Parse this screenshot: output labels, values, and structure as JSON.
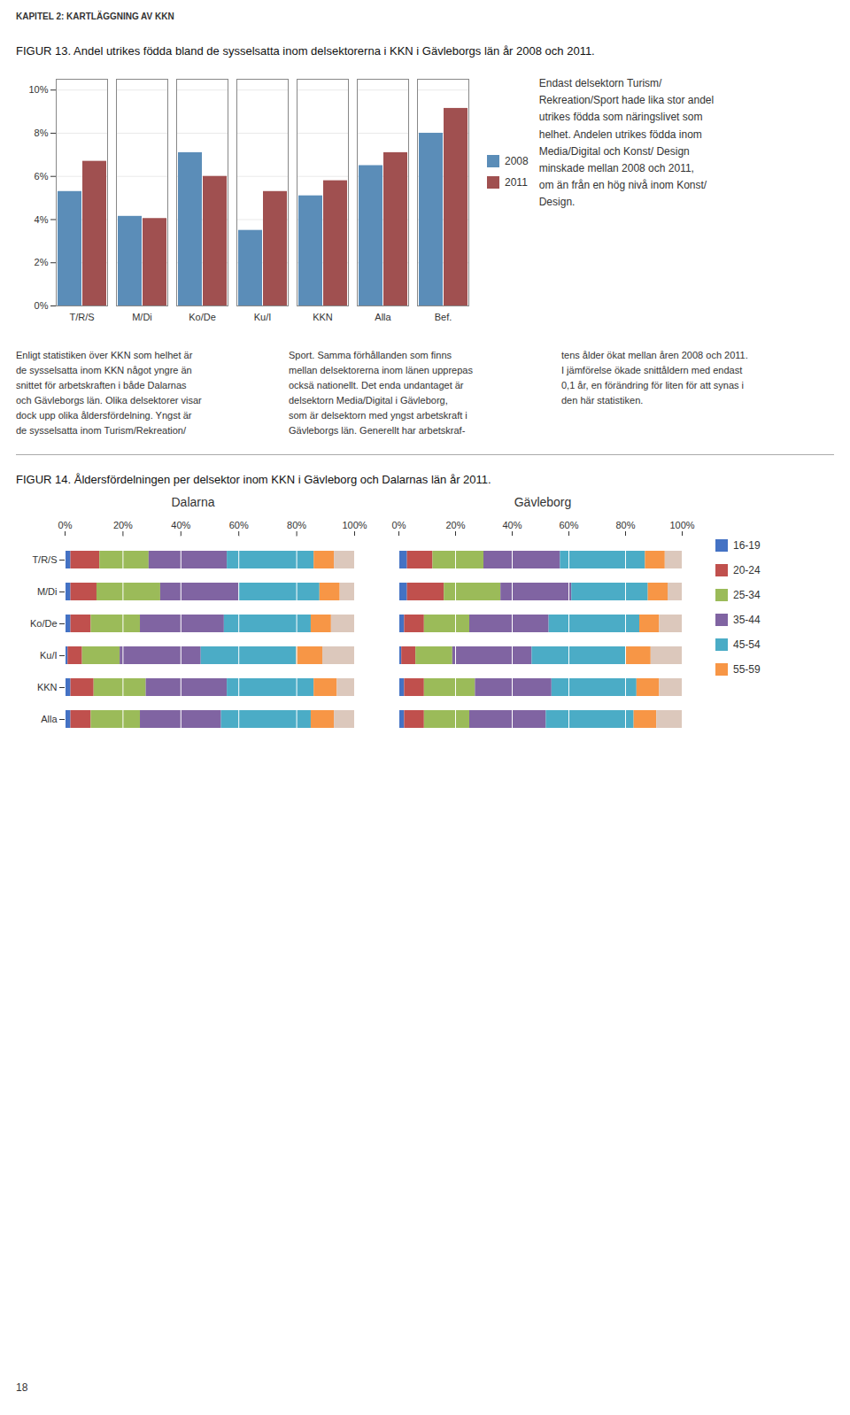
{
  "header": "KAPITEL 2: KARTLÄGGNING AV KKN",
  "chart_data": [
    {
      "type": "bar",
      "title": "FIGUR 13. Andel utrikes födda bland de sysselsatta inom delsektorerna i KKN i Gävleborgs län år 2008 och 2011.",
      "categories": [
        "T/R/S",
        "M/Di",
        "Ko/De",
        "Ku/I",
        "KKN",
        "Alla",
        "Bef."
      ],
      "series": [
        {
          "name": "2008",
          "color": "#5b8db8",
          "values": [
            5.3,
            4.15,
            7.1,
            3.5,
            5.1,
            6.5,
            8.0
          ]
        },
        {
          "name": "2011",
          "color": "#a05050",
          "values": [
            6.7,
            4.05,
            6.0,
            5.3,
            5.8,
            7.1,
            9.15
          ]
        }
      ],
      "ylim": [
        0,
        10.5
      ],
      "yticks": [
        {
          "value": 0,
          "label": "0%"
        },
        {
          "value": 2,
          "label": "2%"
        },
        {
          "value": 4,
          "label": "4%"
        },
        {
          "value": 6,
          "label": "6%"
        },
        {
          "value": 8,
          "label": "8%"
        },
        {
          "value": 10,
          "label": "10%"
        }
      ],
      "grid": true,
      "legend": "right",
      "annotations": [
        "Endast delsektorn Turism/\nRekreation/Sport hade lika stor andel\nutrikes födda som näringslivet som\nhelhet. Andelen utrikes födda inom\nMedia/Digital och Konst/ Design\nminskade mellan 2008 och 2011,\nom än från en hög nivå inom Konst/\nDesign."
      ]
    },
    {
      "type": "bar",
      "title": "Dalarna",
      "orientation": "horizontal",
      "stacked": true,
      "categories": [
        "T/R/S",
        "M/Di",
        "Ko/De",
        "Ku/I",
        "KKN",
        "Alla"
      ],
      "series": [
        {
          "name": "16-19",
          "color": "#4472c4",
          "values": [
            2,
            2,
            2,
            1,
            2,
            2
          ]
        },
        {
          "name": "20-24",
          "color": "#c0504d",
          "values": [
            10,
            9,
            7,
            5,
            8,
            7
          ]
        },
        {
          "name": "25-34",
          "color": "#9bbb59",
          "values": [
            17,
            22,
            17,
            13,
            18,
            17
          ]
        },
        {
          "name": "35-44",
          "color": "#8064a2",
          "values": [
            27,
            27,
            29,
            28,
            28,
            28
          ]
        },
        {
          "name": "45-54",
          "color": "#4bacc6",
          "values": [
            30,
            28,
            30,
            33,
            30,
            31
          ]
        },
        {
          "name": "55-59",
          "color": "#f79646",
          "values": [
            7,
            7,
            7,
            9,
            8,
            8
          ]
        },
        {
          "name": null,
          "color": "#dcc8bc",
          "values": [
            7,
            5,
            8,
            11,
            6,
            7
          ]
        }
      ],
      "xlim": [
        0,
        100
      ],
      "xticks": [
        {
          "value": 0,
          "label": "0%"
        },
        {
          "value": 20,
          "label": "20%"
        },
        {
          "value": 40,
          "label": "40%"
        },
        {
          "value": 60,
          "label": "60%"
        },
        {
          "value": 80,
          "label": "80%"
        },
        {
          "value": 100,
          "label": "100%"
        }
      ],
      "grid": true
    },
    {
      "type": "bar",
      "title": "Gävleborg",
      "orientation": "horizontal",
      "stacked": true,
      "categories": [
        "T/R/S",
        "M/Di",
        "Ko/De",
        "Ku/I",
        "KKN",
        "Alla"
      ],
      "series": [
        {
          "name": "16-19",
          "color": "#4472c4",
          "values": [
            3,
            3,
            2,
            1,
            2,
            2
          ]
        },
        {
          "name": "20-24",
          "color": "#c0504d",
          "values": [
            9,
            13,
            7,
            5,
            7,
            7
          ]
        },
        {
          "name": "25-34",
          "color": "#9bbb59",
          "values": [
            18,
            20,
            16,
            13,
            18,
            16
          ]
        },
        {
          "name": "35-44",
          "color": "#8064a2",
          "values": [
            27,
            25,
            28,
            28,
            27,
            27
          ]
        },
        {
          "name": "45-54",
          "color": "#4bacc6",
          "values": [
            30,
            27,
            32,
            33,
            30,
            31
          ]
        },
        {
          "name": "55-59",
          "color": "#f79646",
          "values": [
            7,
            7,
            7,
            9,
            8,
            8
          ]
        },
        {
          "name": null,
          "color": "#dcc8bc",
          "values": [
            6,
            5,
            8,
            11,
            8,
            9
          ]
        }
      ],
      "xlim": [
        0,
        100
      ],
      "xticks": [
        {
          "value": 0,
          "label": "0%"
        },
        {
          "value": 20,
          "label": "20%"
        },
        {
          "value": 40,
          "label": "40%"
        },
        {
          "value": 60,
          "label": "60%"
        },
        {
          "value": 80,
          "label": "80%"
        },
        {
          "value": 100,
          "label": "100%"
        }
      ],
      "grid": true,
      "tick_labels": "x",
      "legend": "right"
    }
  ],
  "group_title": "FIGUR 14. Åldersfördelningen per delsektor inom KKN i Gävleborg och Dalarnas län år 2011.",
  "body_text": [
    "Enligt statistiken över KKN som helhet är\nde sysselsatta inom KKN något yngre än\nsnittet för arbetskraften i både Dalarnas\noch Gävleborgs län. Olika delsektorer visar\ndock upp olika åldersfördelning. Yngst är\nde sysselsatta inom Turism/Rekreation/",
    "Sport. Samma förhållanden som finns\nmellan delsektorerna inom länen upprepas\nocksä nationellt. Det enda undantaget är\ndelsektorn Media/Digital i Gävleborg,\nsom är delsektorn med yngst arbetskraft i\nGävleborgs län. Generellt har arbetskraf-",
    "tens ålder ökat mellan åren 2008 och 2011.\nI jämförelse ökade snittåldern med endast\n0,1 år, en förändring för liten för att synas i\nden här statistiken."
  ],
  "page_number": "18"
}
